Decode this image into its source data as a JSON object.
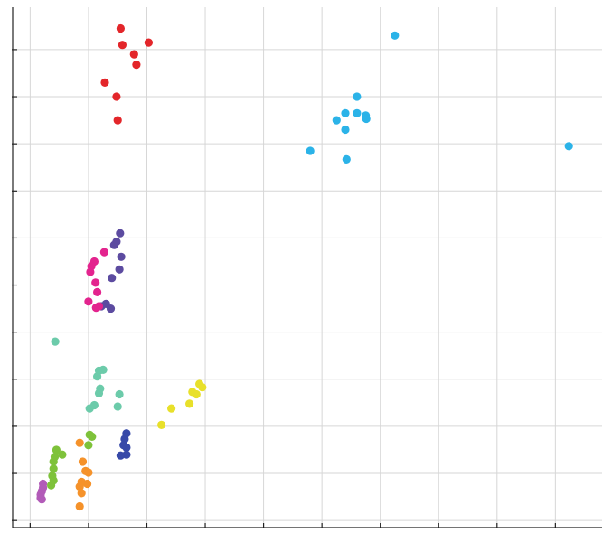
{
  "chart_data": {
    "type": "scatter",
    "title": "",
    "xlabel": "",
    "ylabel": "",
    "grid": true,
    "xlim": [
      -0.3,
      9.8
    ],
    "ylim": [
      -0.15,
      10.9
    ],
    "xgrid": [
      0,
      1,
      2,
      3,
      4,
      5,
      6,
      7,
      8,
      9
    ],
    "ygrid": [
      0,
      1,
      2,
      3,
      4,
      5,
      6,
      7,
      8,
      9,
      10
    ],
    "series": [
      {
        "color": "#e3262a",
        "points": [
          [
            1.55,
            10.45
          ],
          [
            1.58,
            10.1
          ],
          [
            2.03,
            10.15
          ],
          [
            1.78,
            9.9
          ],
          [
            1.82,
            9.68
          ],
          [
            1.28,
            9.3
          ],
          [
            1.48,
            9.0
          ],
          [
            1.5,
            8.5
          ]
        ]
      },
      {
        "color": "#2bb3e8",
        "points": [
          [
            6.25,
            10.3
          ],
          [
            5.6,
            9.0
          ],
          [
            5.4,
            8.65
          ],
          [
            5.6,
            8.65
          ],
          [
            5.75,
            8.6
          ],
          [
            5.76,
            8.53
          ],
          [
            5.25,
            8.5
          ],
          [
            5.4,
            8.3
          ],
          [
            4.8,
            7.85
          ],
          [
            5.42,
            7.67
          ],
          [
            9.23,
            7.95
          ]
        ]
      },
      {
        "color": "#5c4ba0",
        "points": [
          [
            1.54,
            6.1
          ],
          [
            1.48,
            5.92
          ],
          [
            1.44,
            5.85
          ],
          [
            1.56,
            5.6
          ],
          [
            1.53,
            5.33
          ],
          [
            1.4,
            5.15
          ],
          [
            1.3,
            4.6
          ],
          [
            1.38,
            4.5
          ],
          [
            1.22,
            4.55
          ]
        ]
      },
      {
        "color": "#e3248e",
        "points": [
          [
            1.27,
            5.7
          ],
          [
            1.1,
            5.5
          ],
          [
            1.05,
            5.4
          ],
          [
            1.03,
            5.28
          ],
          [
            1.12,
            5.05
          ],
          [
            1.15,
            4.85
          ],
          [
            1.0,
            4.65
          ],
          [
            1.13,
            4.52
          ],
          [
            1.18,
            4.55
          ]
        ]
      },
      {
        "color": "#6ccbaa",
        "points": [
          [
            0.43,
            3.8
          ],
          [
            1.25,
            3.2
          ],
          [
            1.18,
            3.18
          ],
          [
            1.15,
            3.06
          ],
          [
            1.2,
            2.8
          ],
          [
            1.18,
            2.7
          ],
          [
            1.53,
            2.68
          ],
          [
            1.5,
            2.42
          ],
          [
            1.1,
            2.45
          ],
          [
            1.02,
            2.38
          ]
        ]
      },
      {
        "color": "#e8e02a",
        "points": [
          [
            2.9,
            2.9
          ],
          [
            2.95,
            2.83
          ],
          [
            2.78,
            2.73
          ],
          [
            2.85,
            2.68
          ],
          [
            2.73,
            2.48
          ],
          [
            2.42,
            2.38
          ],
          [
            2.25,
            2.03
          ]
        ]
      },
      {
        "color": "#3749a8",
        "points": [
          [
            1.65,
            1.85
          ],
          [
            1.62,
            1.73
          ],
          [
            1.6,
            1.6
          ],
          [
            1.65,
            1.55
          ],
          [
            1.65,
            1.4
          ],
          [
            1.55,
            1.38
          ]
        ]
      },
      {
        "color": "#f5922a",
        "points": [
          [
            0.85,
            1.65
          ],
          [
            0.9,
            1.25
          ],
          [
            0.95,
            1.05
          ],
          [
            1.0,
            1.02
          ],
          [
            0.88,
            0.82
          ],
          [
            0.98,
            0.78
          ],
          [
            0.85,
            0.72
          ],
          [
            0.88,
            0.58
          ],
          [
            0.85,
            0.3
          ]
        ]
      },
      {
        "color": "#7ec23a",
        "points": [
          [
            1.02,
            1.82
          ],
          [
            1.06,
            1.78
          ],
          [
            1.0,
            1.6
          ],
          [
            0.45,
            1.5
          ],
          [
            0.55,
            1.4
          ],
          [
            0.42,
            1.35
          ],
          [
            0.4,
            1.25
          ],
          [
            0.4,
            1.1
          ],
          [
            0.38,
            0.95
          ],
          [
            0.4,
            0.85
          ],
          [
            0.36,
            0.75
          ]
        ]
      },
      {
        "color": "#b25bb8",
        "points": [
          [
            0.22,
            0.78
          ],
          [
            0.22,
            0.7
          ],
          [
            0.2,
            0.62
          ],
          [
            0.18,
            0.55
          ],
          [
            0.18,
            0.48
          ],
          [
            0.2,
            0.45
          ]
        ]
      }
    ]
  }
}
